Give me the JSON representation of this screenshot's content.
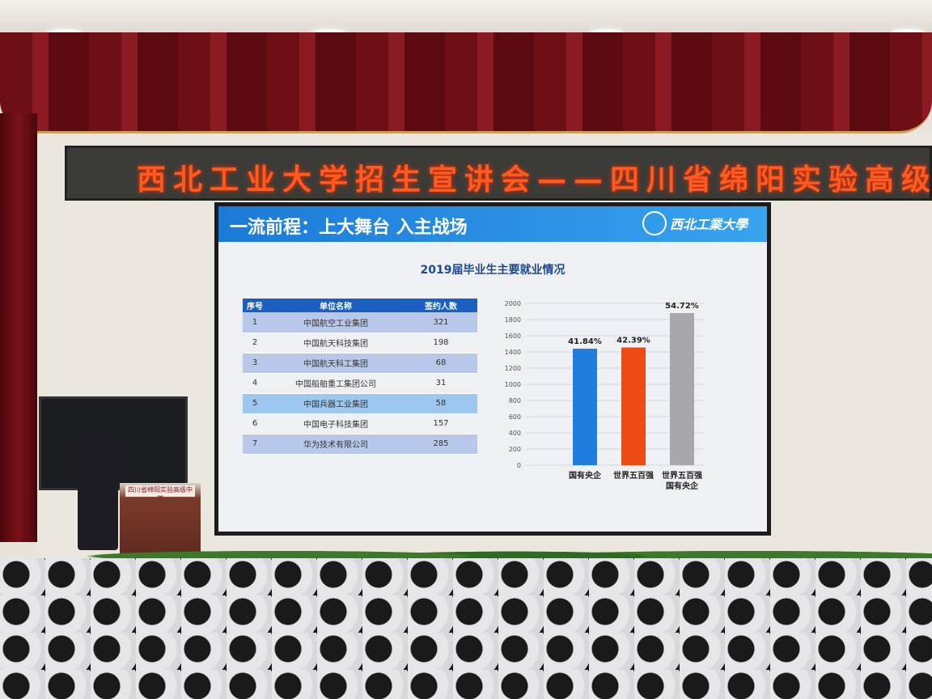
{
  "banner": {
    "text": "西北工业大学招生宣讲会——四川省绵阳实验高级中学"
  },
  "slide": {
    "header": "一流前程：上大舞台  入主战场",
    "logo_text": "西北工業大學",
    "title": "2019届毕业生主要就业情况",
    "table": {
      "headers": [
        "序号",
        "单位名称",
        "签约人数"
      ],
      "rows": [
        [
          "1",
          "中国航空工业集团",
          "321"
        ],
        [
          "2",
          "中国航天科技集团",
          "198"
        ],
        [
          "3",
          "中国航天科工集团",
          "68"
        ],
        [
          "4",
          "中国船舶重工集团公司",
          "31"
        ],
        [
          "5",
          "中国兵器工业集团",
          "58"
        ],
        [
          "6",
          "中国电子科技集团",
          "157"
        ],
        [
          "7",
          "华为技术有限公司",
          "285"
        ]
      ]
    }
  },
  "chart_data": {
    "type": "bar",
    "categories": [
      "国有央企",
      "世界五百强",
      "世界五百强\n国有央企"
    ],
    "values": [
      1440,
      1455,
      1880
    ],
    "data_labels": [
      "41.84%",
      "42.39%",
      "54.72%"
    ],
    "colors": [
      "#1f7de0",
      "#ee4a14",
      "#a8a8ac"
    ],
    "ylim": [
      0,
      2000
    ],
    "yticks": [
      0,
      200,
      400,
      600,
      800,
      1000,
      1200,
      1400,
      1600,
      1800,
      2000
    ],
    "grid": true
  },
  "podium": {
    "sign": "四川省绵阳实验高级中学"
  }
}
